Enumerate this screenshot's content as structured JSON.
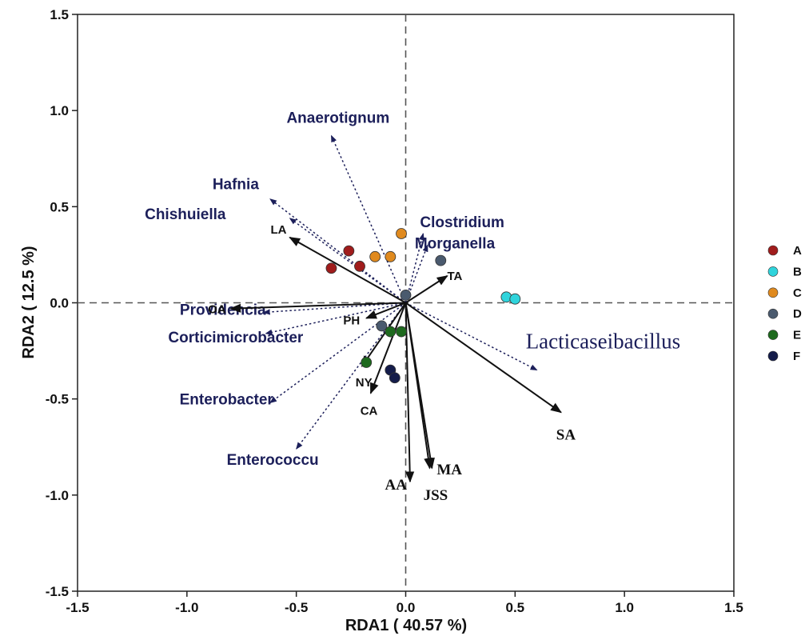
{
  "chart_data": {
    "type": "scatter",
    "xlabel": "RDA1 ( 40.57 %)",
    "ylabel": "RDA2 ( 12.5 %)",
    "xlim": [
      -1.5,
      1.5
    ],
    "ylim": [
      -1.5,
      1.5
    ],
    "x_ticks": [
      "-1.5",
      "-1.0",
      "-0.5",
      "0.0",
      "0.5",
      "1.0",
      "1.5"
    ],
    "y_ticks": [
      "-1.5",
      "-1.0",
      "-0.5",
      "0.0",
      "0.5",
      "1.0",
      "1.5"
    ],
    "zero_lines": "dashed",
    "legend_position": "right",
    "series": [
      {
        "name": "A",
        "color": "#a01c1c",
        "points": [
          [
            -0.34,
            0.18
          ],
          [
            -0.26,
            0.27
          ],
          [
            -0.21,
            0.19
          ]
        ]
      },
      {
        "name": "B",
        "color": "#2fd4dc",
        "points": [
          [
            0.46,
            0.03
          ],
          [
            0.5,
            0.02
          ]
        ]
      },
      {
        "name": "C",
        "color": "#e08a1e",
        "points": [
          [
            -0.14,
            0.24
          ],
          [
            -0.07,
            0.24
          ],
          [
            -0.02,
            0.36
          ]
        ]
      },
      {
        "name": "D",
        "color": "#4a5a6e",
        "points": [
          [
            -0.11,
            -0.12
          ],
          [
            0.0,
            0.04
          ],
          [
            0.16,
            0.22
          ]
        ]
      },
      {
        "name": "E",
        "color": "#1e6a1e",
        "points": [
          [
            -0.18,
            -0.31
          ],
          [
            -0.07,
            -0.15
          ],
          [
            -0.02,
            -0.15
          ]
        ]
      },
      {
        "name": "F",
        "color": "#141c4a",
        "points": [
          [
            -0.07,
            -0.35
          ],
          [
            -0.05,
            -0.39
          ]
        ]
      }
    ],
    "species_arrows": [
      {
        "label": "Anaerotignum",
        "x": -0.34,
        "y": 0.87
      },
      {
        "label": "Hafnia",
        "x": -0.62,
        "y": 0.54
      },
      {
        "label": "Chishuiella",
        "x": -0.53,
        "y": 0.44
      },
      {
        "label": "Clostridium",
        "x": 0.08,
        "y": 0.36
      },
      {
        "label": "Morganella",
        "x": 0.1,
        "y": 0.3
      },
      {
        "label": "Providencia",
        "x": -0.65,
        "y": -0.05
      },
      {
        "label": "Corticimicrobacter",
        "x": -0.64,
        "y": -0.16
      },
      {
        "label": "Enterobacter",
        "x": -0.62,
        "y": -0.52
      },
      {
        "label": "Enterococcu",
        "x": -0.5,
        "y": -0.76
      },
      {
        "label": "Lacticaseibacillus",
        "x": 0.6,
        "y": -0.35
      }
    ],
    "env_arrows": [
      {
        "label": "LA",
        "x": -0.53,
        "y": 0.34
      },
      {
        "label": "TA",
        "x": 0.19,
        "y": 0.14
      },
      {
        "label": "OA",
        "x": -0.8,
        "y": -0.03
      },
      {
        "label": "PH",
        "x": -0.18,
        "y": -0.08
      },
      {
        "label": "NY",
        "x": -0.2,
        "y": -0.33
      },
      {
        "label": "CA",
        "x": -0.16,
        "y": -0.47
      },
      {
        "label": "SA",
        "x": 0.71,
        "y": -0.57
      },
      {
        "label": "MA",
        "x": 0.12,
        "y": -0.86
      },
      {
        "label": "JSS",
        "x": 0.11,
        "y": -0.86
      },
      {
        "label": "AA",
        "x": 0.02,
        "y": -0.93
      }
    ]
  }
}
